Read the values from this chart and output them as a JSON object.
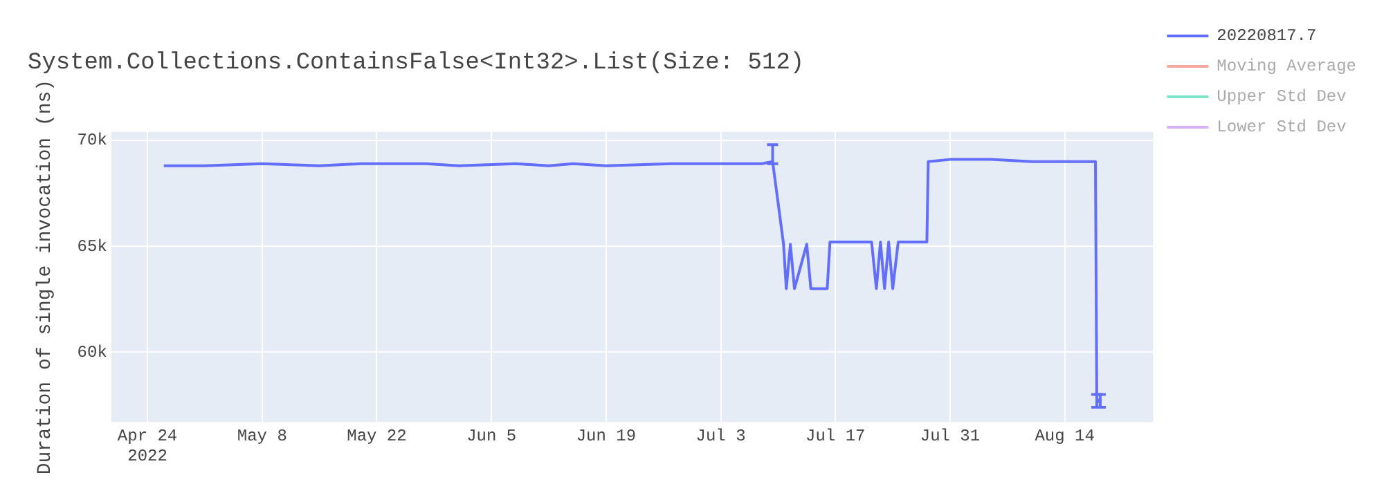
{
  "chart_data": {
    "type": "line",
    "title": "System.Collections.ContainsFalse<Int32>.List(Size: 512)",
    "ylabel": "Duration of single invocation (ns)",
    "x": [
      "2022-04-26",
      "2022-05-01",
      "2022-05-08",
      "2022-05-15",
      "2022-05-20",
      "2022-05-22",
      "2022-05-25",
      "2022-05-28",
      "2022-06-01",
      "2022-06-08",
      "2022-06-12",
      "2022-06-15",
      "2022-06-19",
      "2022-06-27",
      "2022-07-01",
      "2022-07-05",
      "2022-07-08",
      "2022-07-09T08:00",
      "2022-07-10T16:00",
      "2022-07-11",
      "2022-07-11T12:00",
      "2022-07-12",
      "2022-07-13T12:00",
      "2022-07-14",
      "2022-07-16",
      "2022-07-16T08:00",
      "2022-07-19",
      "2022-07-21T10:00",
      "2022-07-22",
      "2022-07-22T12:00",
      "2022-07-23",
      "2022-07-23T12:00",
      "2022-07-24",
      "2022-07-24T16:00",
      "2022-07-26",
      "2022-07-28T04:00",
      "2022-07-28T08:00",
      "2022-07-31",
      "2022-08-05",
      "2022-08-10",
      "2022-08-17T18:00",
      "2022-08-17T22:00",
      "2022-08-18T08:00"
    ],
    "series": [
      {
        "name": "20220817.7",
        "color": "#636efa",
        "values": [
          68800,
          68800,
          68900,
          68800,
          68900,
          68900,
          68900,
          68900,
          68800,
          68900,
          68800,
          68900,
          68800,
          68900,
          68900,
          68900,
          68900,
          69000,
          65100,
          63000,
          65100,
          63000,
          65100,
          63000,
          63000,
          65200,
          65200,
          65200,
          63000,
          65200,
          63000,
          65200,
          63000,
          65200,
          65200,
          65200,
          69000,
          69100,
          69100,
          69000,
          69000,
          57600,
          57800
        ],
        "errors": [
          null,
          null,
          null,
          null,
          null,
          null,
          null,
          null,
          null,
          null,
          null,
          null,
          null,
          null,
          null,
          null,
          null,
          [
            68900,
            69800
          ],
          null,
          null,
          null,
          null,
          null,
          null,
          null,
          null,
          null,
          null,
          null,
          null,
          null,
          null,
          null,
          null,
          null,
          null,
          null,
          null,
          null,
          null,
          null,
          [
            57400,
            58000
          ],
          [
            57400,
            58000
          ]
        ]
      },
      {
        "name": "Moving Average",
        "color": "#ef553b",
        "values": [
          null,
          null,
          null,
          null,
          null,
          null,
          null,
          null,
          null,
          null,
          null,
          null,
          null,
          null,
          null,
          null,
          null,
          null,
          null,
          null,
          null,
          null,
          null,
          null,
          null,
          null,
          null,
          null,
          null,
          null,
          null,
          null,
          null,
          null,
          null,
          null,
          null,
          null,
          null,
          null,
          null,
          null,
          null
        ]
      },
      {
        "name": "Upper Std Dev",
        "color": "#00cc96",
        "values": [
          null,
          null,
          null,
          null,
          null,
          null,
          null,
          null,
          null,
          null,
          null,
          null,
          null,
          null,
          null,
          null,
          null,
          null,
          null,
          null,
          null,
          null,
          null,
          null,
          null,
          null,
          null,
          null,
          null,
          null,
          null,
          null,
          null,
          null,
          null,
          null,
          null,
          null,
          null,
          null,
          null,
          null,
          null
        ]
      },
      {
        "name": "Lower Std Dev",
        "color": "#ab63fa",
        "values": [
          null,
          null,
          null,
          null,
          null,
          null,
          null,
          null,
          null,
          null,
          null,
          null,
          null,
          null,
          null,
          null,
          null,
          null,
          null,
          null,
          null,
          null,
          null,
          null,
          null,
          null,
          null,
          null,
          null,
          null,
          null,
          null,
          null,
          null,
          null,
          null,
          null,
          null,
          null,
          null,
          null,
          null,
          null
        ]
      }
    ],
    "xlim": [
      "2022-04-19T14:00",
      "2022-08-24T19:00"
    ],
    "xticks": [
      {
        "value": "2022-04-24",
        "label": "Apr 24\n2022"
      },
      {
        "value": "2022-05-08",
        "label": "May 8"
      },
      {
        "value": "2022-05-22",
        "label": "May 22"
      },
      {
        "value": "2022-06-05",
        "label": "Jun 5"
      },
      {
        "value": "2022-06-19",
        "label": "Jun 19"
      },
      {
        "value": "2022-07-03",
        "label": "Jul 3"
      },
      {
        "value": "2022-07-17",
        "label": "Jul 17"
      },
      {
        "value": "2022-07-31",
        "label": "Jul 31"
      },
      {
        "value": "2022-08-14",
        "label": "Aug 14"
      }
    ],
    "ylim": [
      56700,
      70400
    ],
    "yticks": [
      {
        "value": 60000,
        "label": "60k"
      },
      {
        "value": 65000,
        "label": "65k"
      },
      {
        "value": 70000,
        "label": "70k"
      }
    ],
    "grid": true,
    "legend": "top right",
    "line_style": "solid",
    "marker": "none"
  }
}
